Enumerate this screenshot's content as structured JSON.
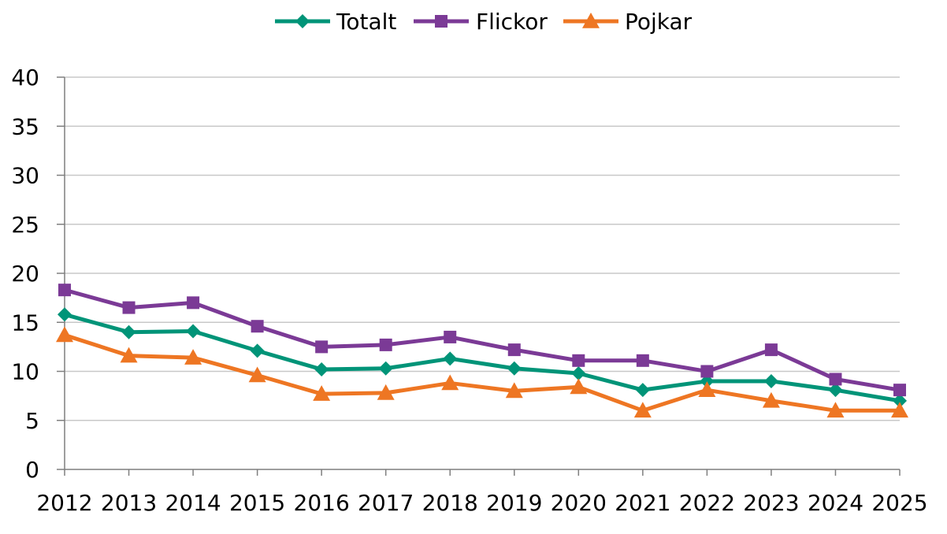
{
  "chart_data": {
    "type": "line",
    "x": [
      "2012",
      "2013",
      "2014",
      "2015",
      "2016",
      "2017",
      "2018",
      "2019",
      "2020",
      "2021",
      "2022",
      "2023",
      "2024",
      "2025"
    ],
    "series": [
      {
        "name": "Totalt",
        "marker": "diamond",
        "color": "#009478",
        "values": [
          15.8,
          14.0,
          14.1,
          12.1,
          10.2,
          10.3,
          11.3,
          10.3,
          9.8,
          8.1,
          9.0,
          9.0,
          8.1,
          7.0
        ]
      },
      {
        "name": "Flickor",
        "marker": "square",
        "color": "#7B3A96",
        "values": [
          18.3,
          16.5,
          17.0,
          14.6,
          12.5,
          12.7,
          13.5,
          12.2,
          11.1,
          11.1,
          10.0,
          12.2,
          9.2,
          8.1
        ]
      },
      {
        "name": "Pojkar",
        "marker": "triangle",
        "color": "#EE7623",
        "values": [
          13.7,
          11.6,
          11.4,
          9.6,
          7.7,
          7.8,
          8.8,
          8.0,
          8.4,
          6.0,
          8.1,
          7.0,
          6.0,
          6.0
        ]
      }
    ],
    "yticks": [
      "0",
      "5",
      "10",
      "15",
      "20",
      "25",
      "30",
      "35",
      "40"
    ],
    "ylim": [
      0,
      40
    ],
    "grid": true,
    "legend_position": "top-center",
    "gridline_color": "#C8C8C8",
    "axis_color": "#7F7F7F"
  }
}
